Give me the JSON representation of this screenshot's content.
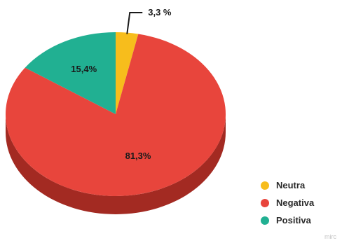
{
  "chart_data": {
    "type": "pie",
    "style": "3d",
    "slices": [
      {
        "name": "Neutra",
        "value": 3.3,
        "label": "3,3 %",
        "color": "#f7bd1c",
        "side_color": "#c28f08"
      },
      {
        "name": "Negativa",
        "value": 81.3,
        "label": "81,3%",
        "color": "#e8453c",
        "side_color": "#a32a22"
      },
      {
        "name": "Positiva",
        "value": 15.4,
        "label": "15,4%",
        "color": "#21b092",
        "side_color": "#17806a"
      }
    ],
    "legend": [
      "Neutra",
      "Negativa",
      "Positiva"
    ],
    "legend_position": "bottom-right"
  },
  "legend": {
    "items": [
      {
        "label": "Neutra",
        "color": "#f7bd1c"
      },
      {
        "label": "Negativa",
        "color": "#e8453c"
      },
      {
        "label": "Positiva",
        "color": "#21b092"
      }
    ]
  },
  "watermark": "mirc"
}
